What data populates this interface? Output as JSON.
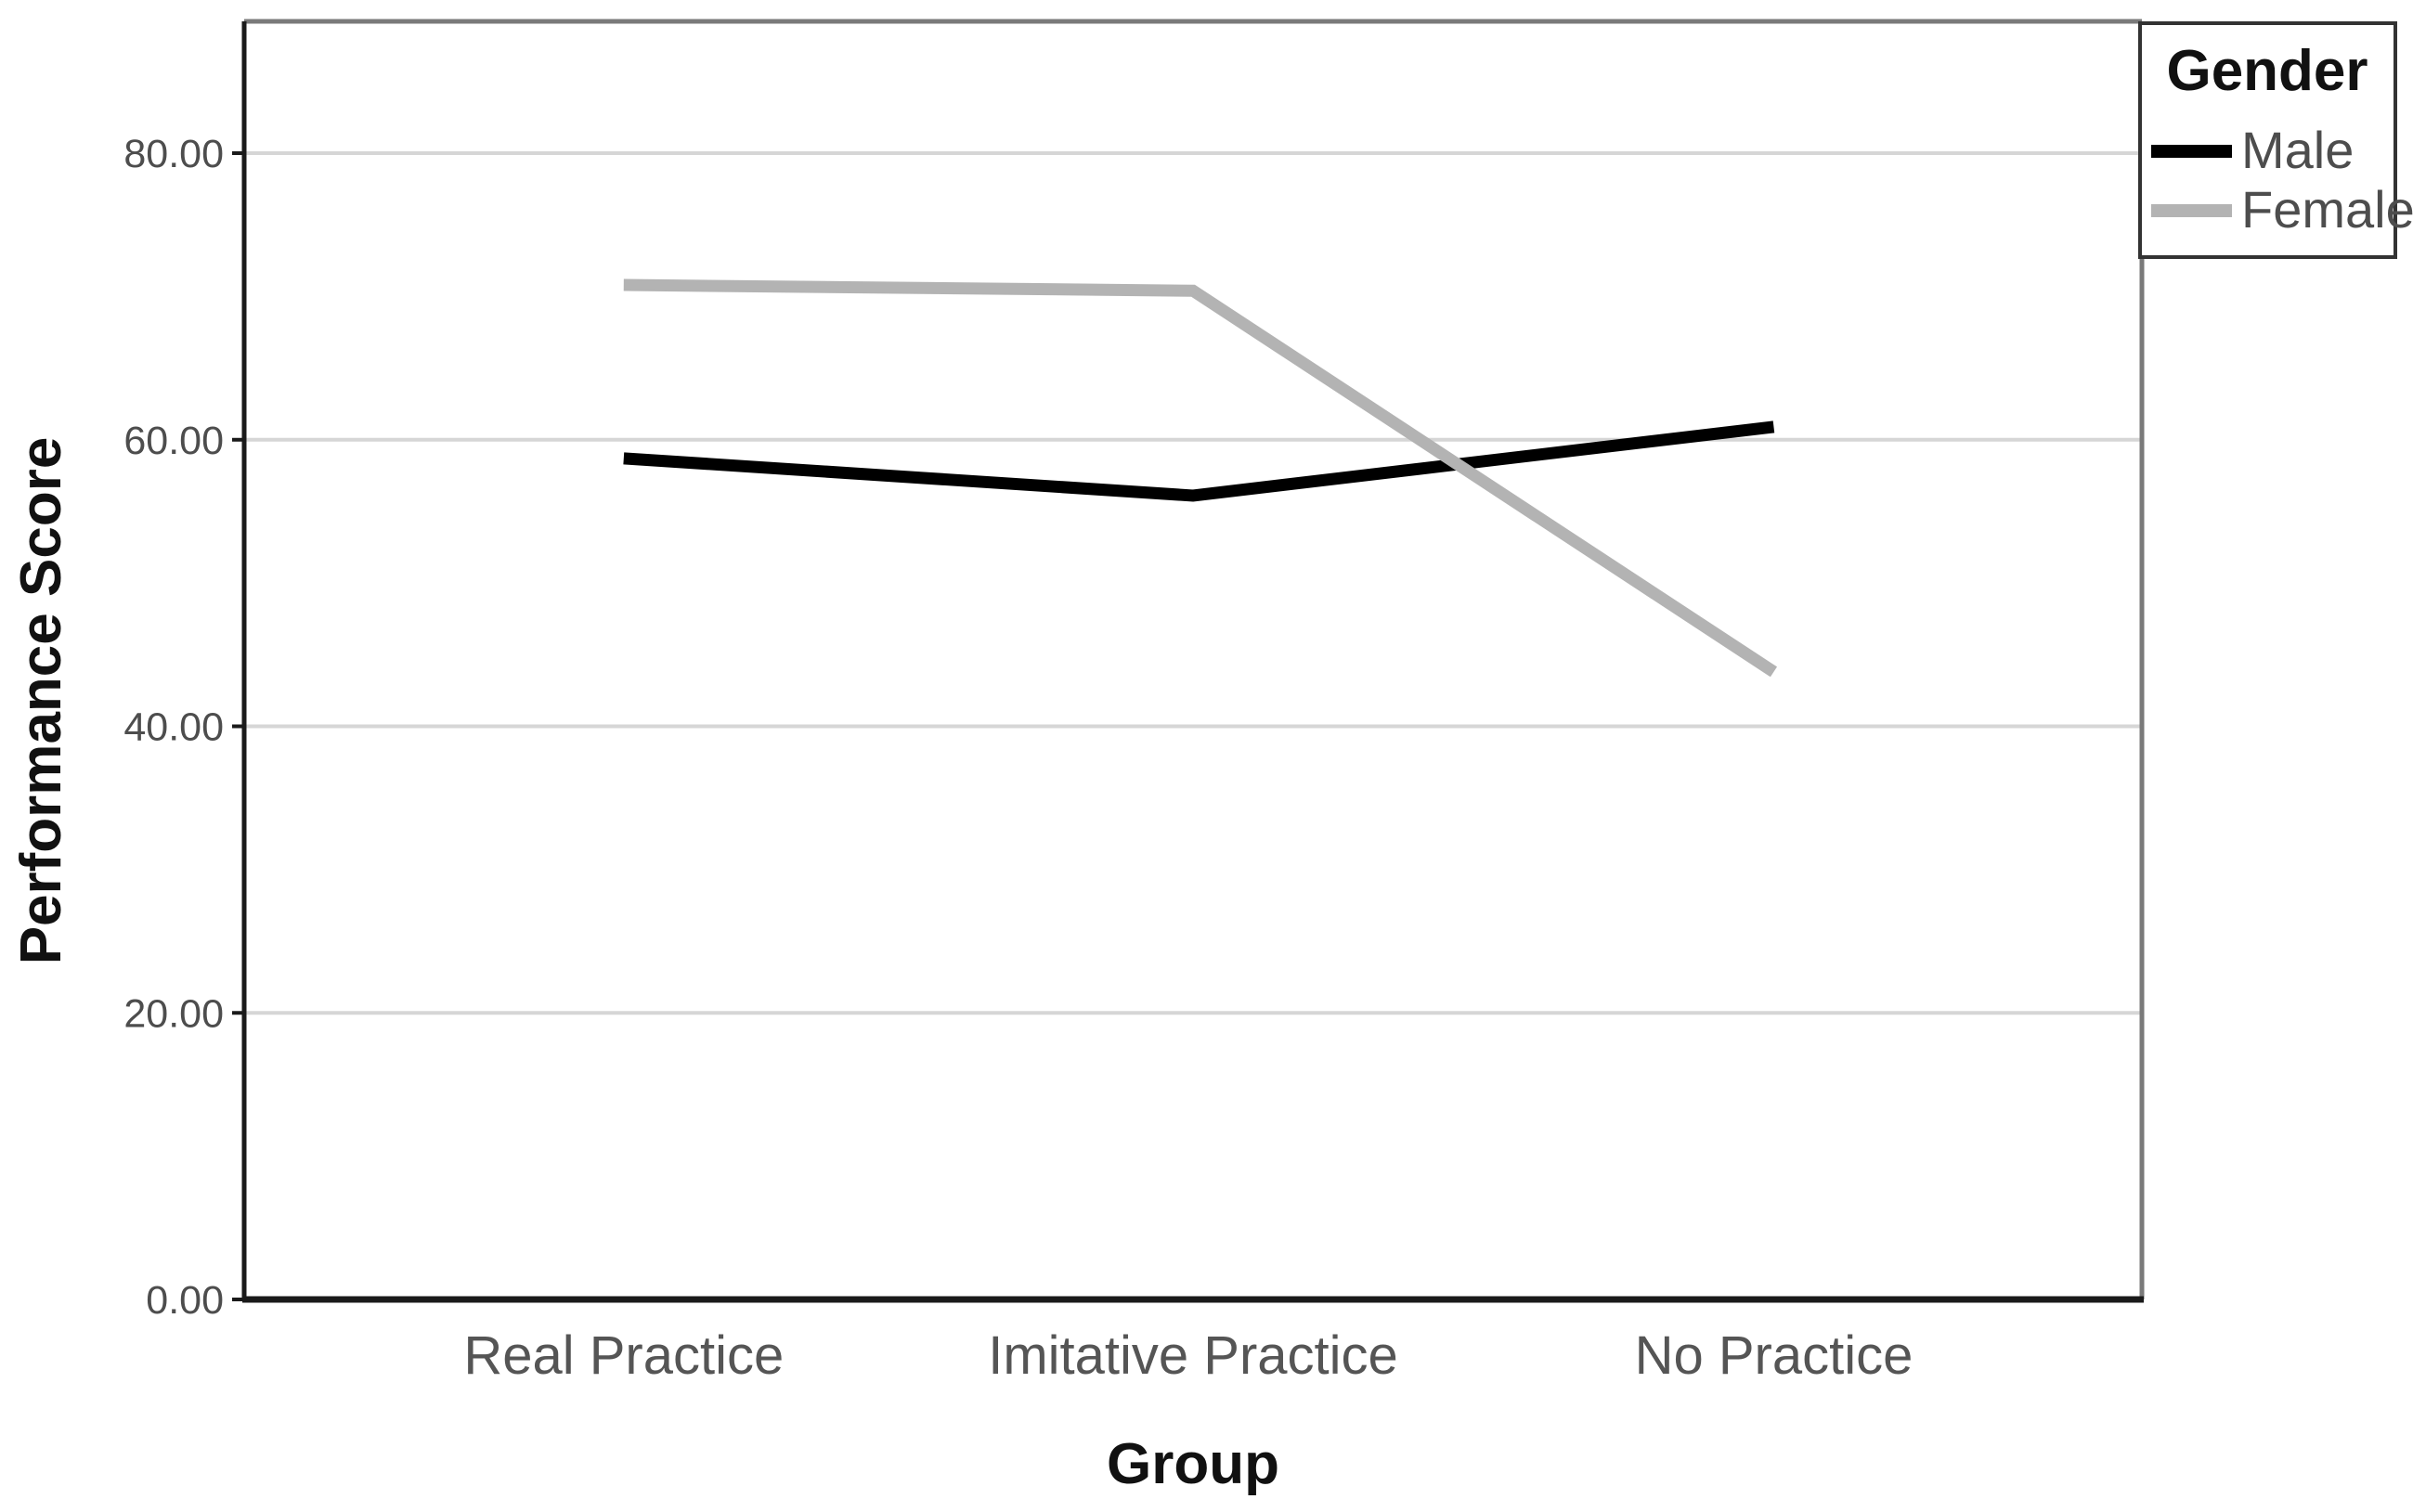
{
  "chart_data": {
    "type": "line",
    "title": "",
    "categories": [
      "Real Practice",
      "Imitative Practice",
      "No Practice"
    ],
    "series": [
      {
        "name": "Male",
        "color": "#000000",
        "values": [
          58.7,
          56.1,
          60.9
        ]
      },
      {
        "name": "Female",
        "color": "#b3b3b3",
        "values": [
          70.8,
          70.4,
          43.8
        ]
      }
    ],
    "xlabel": "Group",
    "ylabel": "Performance Score",
    "ylim": [
      0,
      89.2
    ],
    "yticks": {
      "values": [
        0,
        20,
        40,
        60,
        80
      ],
      "labels": [
        "0.00",
        "20.00",
        "40.00",
        "60.00",
        "80.00"
      ]
    },
    "legend": {
      "title": "Gender",
      "position": "top-right"
    },
    "grid": "horizontal"
  },
  "colors": {
    "gridline": "#d6d6d6",
    "axis_line": "#1a1a1a",
    "frame_line": "#7a7a7a",
    "legend_border": "#333333",
    "background": "#ffffff"
  }
}
